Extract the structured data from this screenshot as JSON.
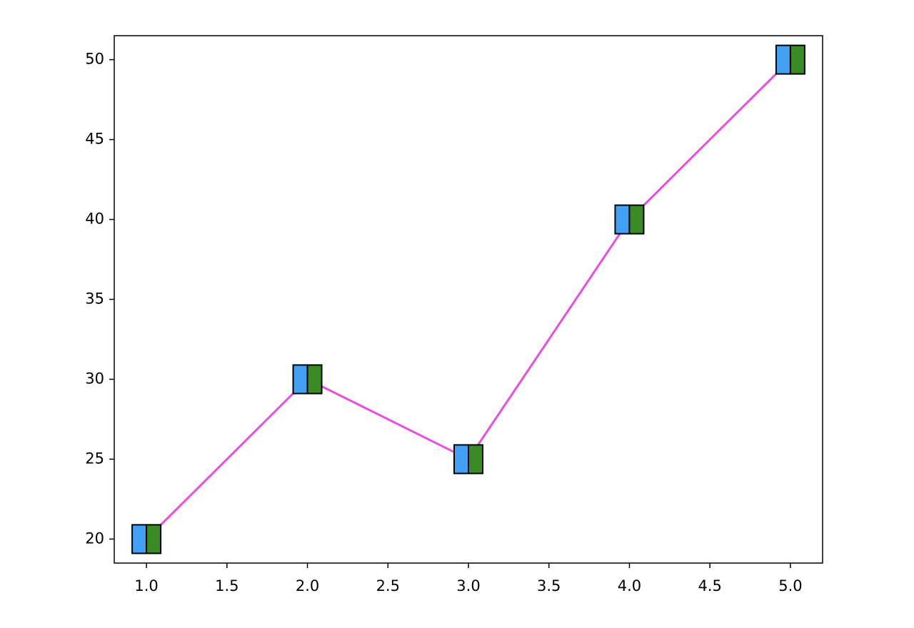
{
  "chart_data": {
    "type": "line",
    "x": [
      1,
      2,
      3,
      4,
      5
    ],
    "series": [
      {
        "color": "#e84ee0",
        "values": [
          20,
          30,
          25,
          40,
          50
        ],
        "marker_colors": [
          "#42a1f4",
          "#3a8a26"
        ]
      }
    ],
    "xlim": [
      0.8,
      5.2
    ],
    "xticks": [
      {
        "value": 1,
        "label": "1.0"
      },
      {
        "value": 1.5,
        "label": "1.5"
      },
      {
        "value": 2,
        "label": "2.0"
      },
      {
        "value": 2.5,
        "label": "2.5"
      },
      {
        "value": 3,
        "label": "3.0"
      },
      {
        "value": 3.5,
        "label": "3.5"
      },
      {
        "value": 4,
        "label": "4.0"
      },
      {
        "value": 4.5,
        "label": "4.5"
      },
      {
        "value": 5,
        "label": "5.0"
      }
    ],
    "ylim": [
      18.5,
      51.5
    ],
    "yticks": [
      20,
      25,
      30,
      35,
      40,
      45,
      50
    ],
    "grid": false
  }
}
